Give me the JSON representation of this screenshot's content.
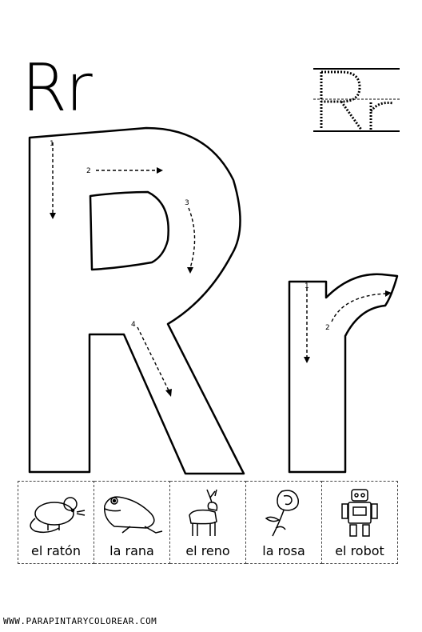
{
  "title": "Rr",
  "guides": {
    "numbers_big_r": [
      "1",
      "2",
      "3",
      "4"
    ],
    "numbers_small_r": [
      "1",
      "2"
    ]
  },
  "pictures": [
    {
      "word": "el ratón",
      "icon": "mouse-icon"
    },
    {
      "word": "la rana",
      "icon": "frog-icon"
    },
    {
      "word": "el reno",
      "icon": "reindeer-icon"
    },
    {
      "word": "la rosa",
      "icon": "rose-icon"
    },
    {
      "word": "el robot",
      "icon": "robot-icon"
    }
  ],
  "footer": "WWW.PARAPINTARYCOLOREAR.COM"
}
